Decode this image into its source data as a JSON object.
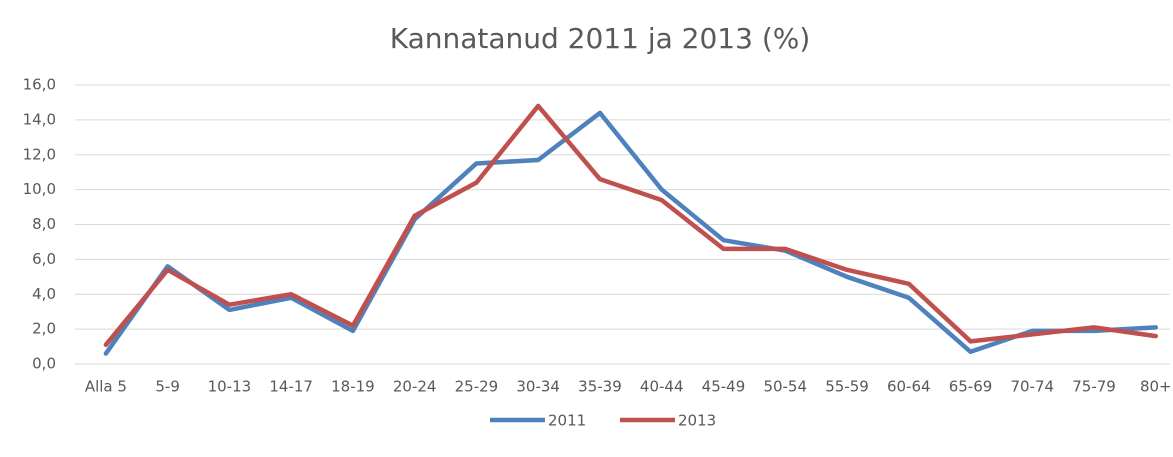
{
  "chart_data": {
    "type": "line",
    "title": "Kannatanud 2011 ja 2013 (%)",
    "categories": [
      "Alla 5",
      "5-9",
      "10-13",
      "14-17",
      "18-19",
      "20-24",
      "25-29",
      "30-34",
      "35-39",
      "40-44",
      "45-49",
      "50-54",
      "55-59",
      "60-64",
      "65-69",
      "70-74",
      "75-79",
      "80+"
    ],
    "series": [
      {
        "name": "2011",
        "color": "#4f81bd",
        "values": [
          0.6,
          5.6,
          3.1,
          3.8,
          1.9,
          8.3,
          11.5,
          11.7,
          14.4,
          10.0,
          7.1,
          6.5,
          5.0,
          3.8,
          0.7,
          1.9,
          1.9,
          2.1
        ]
      },
      {
        "name": "2013",
        "color": "#c0504d",
        "values": [
          1.1,
          5.4,
          3.4,
          4.0,
          2.2,
          8.5,
          10.4,
          14.8,
          10.6,
          9.4,
          6.6,
          6.6,
          5.4,
          4.6,
          1.3,
          1.7,
          2.1,
          1.6
        ]
      }
    ],
    "ylim": [
      0,
      16
    ],
    "yticks": [
      {
        "value": 0,
        "label": "0,0"
      },
      {
        "value": 2,
        "label": "2,0"
      },
      {
        "value": 4,
        "label": "4,0"
      },
      {
        "value": 6,
        "label": "6,0"
      },
      {
        "value": 8,
        "label": "8,0"
      },
      {
        "value": 10,
        "label": "10,0"
      },
      {
        "value": 12,
        "label": "12,0"
      },
      {
        "value": 14,
        "label": "14,0"
      },
      {
        "value": 16,
        "label": "16,0"
      }
    ],
    "grid": true,
    "legend": "bottom"
  }
}
